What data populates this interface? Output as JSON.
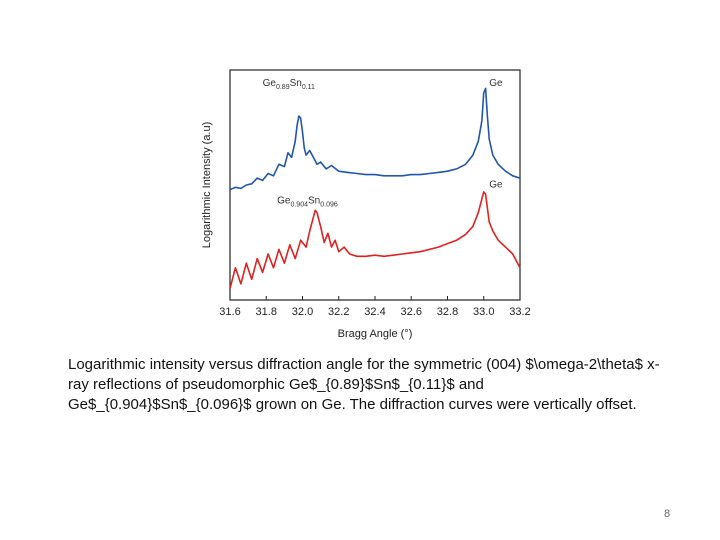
{
  "slide": {
    "caption": "Logarithmic intensity versus diffraction angle for the symmetric (004) $\\omega-2\\theta$ x-ray reflections of pseudomorphic Ge$_{0.89}$Sn$_{0.11}$ and Ge$_{0.904}$Sn$_{0.096}$ grown on Ge. The diffraction curves were vertically offset.",
    "page_number": "8"
  },
  "chart_data": {
    "type": "line",
    "xlabel": "Bragg Angle (°)",
    "ylabel": "Logarithmic Intensity (a.u)",
    "xlim": [
      31.6,
      33.2
    ],
    "ylim": [
      0,
      10
    ],
    "x_ticks": [
      "31.6",
      "31.8",
      "32.0",
      "32.2",
      "32.4",
      "32.6",
      "32.8",
      "33.0",
      "33.2"
    ],
    "annotations": [
      {
        "base": "Ge",
        "sub1": "0.89",
        "mid": "Sn",
        "sub2": "0.11",
        "x": 31.78,
        "y": 9.3
      },
      {
        "base": "Ge",
        "x": 33.03,
        "y": 9.3
      },
      {
        "base": "Ge",
        "sub1": "0.904",
        "mid": "Sn",
        "sub2": "0.096",
        "x": 31.86,
        "y": 4.2
      },
      {
        "base": "Ge",
        "x": 33.03,
        "y": 4.9
      }
    ],
    "series": [
      {
        "color": "#2255aa",
        "x": [
          31.6,
          31.63,
          31.66,
          31.69,
          31.72,
          31.75,
          31.78,
          31.81,
          31.84,
          31.87,
          31.9,
          31.92,
          31.94,
          31.96,
          31.97,
          31.98,
          31.99,
          32.0,
          32.01,
          32.02,
          32.04,
          32.06,
          32.08,
          32.1,
          32.13,
          32.16,
          32.2,
          32.25,
          32.3,
          32.35,
          32.4,
          32.45,
          32.5,
          32.55,
          32.6,
          32.65,
          32.7,
          32.75,
          32.8,
          32.85,
          32.9,
          32.94,
          32.97,
          32.99,
          33.0,
          33.01,
          33.02,
          33.03,
          33.05,
          33.08,
          33.12,
          33.16,
          33.2
        ],
        "y": [
          4.8,
          4.9,
          4.85,
          5.0,
          5.05,
          5.3,
          5.2,
          5.5,
          5.4,
          5.9,
          5.8,
          6.4,
          6.2,
          6.9,
          7.6,
          8.0,
          7.9,
          7.3,
          6.6,
          6.3,
          6.5,
          6.2,
          5.9,
          6.0,
          5.7,
          5.85,
          5.6,
          5.55,
          5.5,
          5.45,
          5.45,
          5.4,
          5.4,
          5.4,
          5.45,
          5.45,
          5.5,
          5.55,
          5.6,
          5.7,
          5.9,
          6.3,
          6.9,
          7.8,
          9.0,
          9.2,
          8.0,
          7.0,
          6.3,
          5.9,
          5.6,
          5.4,
          5.3
        ]
      },
      {
        "color": "#dd2222",
        "x": [
          31.6,
          31.63,
          31.66,
          31.69,
          31.72,
          31.75,
          31.78,
          31.81,
          31.84,
          31.87,
          31.9,
          31.93,
          31.96,
          31.99,
          32.02,
          32.04,
          32.06,
          32.07,
          32.08,
          32.1,
          32.12,
          32.14,
          32.16,
          32.18,
          32.2,
          32.23,
          32.26,
          32.3,
          32.35,
          32.4,
          32.45,
          32.5,
          32.55,
          32.6,
          32.65,
          32.7,
          32.75,
          32.8,
          32.85,
          32.9,
          32.94,
          32.97,
          32.99,
          33.0,
          33.01,
          33.02,
          33.03,
          33.05,
          33.08,
          33.12,
          33.16,
          33.2
        ],
        "y": [
          0.5,
          1.4,
          0.7,
          1.6,
          0.9,
          1.8,
          1.2,
          2.0,
          1.4,
          2.2,
          1.6,
          2.4,
          1.8,
          2.6,
          2.3,
          3.0,
          3.6,
          3.9,
          3.8,
          3.2,
          2.5,
          2.9,
          2.3,
          2.6,
          2.1,
          2.3,
          2.0,
          1.9,
          1.9,
          1.95,
          1.9,
          1.95,
          2.0,
          2.05,
          2.1,
          2.2,
          2.3,
          2.45,
          2.6,
          2.85,
          3.2,
          3.8,
          4.4,
          4.7,
          4.6,
          4.0,
          3.4,
          3.0,
          2.6,
          2.3,
          2.0,
          1.4
        ]
      }
    ]
  }
}
